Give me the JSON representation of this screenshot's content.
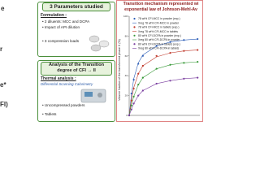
{
  "left_fragments": [
    "e",
    "r",
    "e*",
    "FI)"
  ],
  "parameters": {
    "title": "3 Parameters studied",
    "formulation_label": "Formulation :",
    "items": [
      "2 diluents: MCC and DCPA",
      "Impact of API dilution",
      "3 compression loads"
    ]
  },
  "analysis": {
    "title": "Analysis of the Transition degree of CFI → II",
    "thermal_label": "Thermal analysis :",
    "method": "Differential Scanning Calorimetry",
    "items": [
      "Uncompressed powders",
      "Tablets"
    ]
  },
  "chart_data": {
    "type": "scatter",
    "title": "Transition mechanism represented wi",
    "subtitle": "exponential law of Johnson-Mehl-Av",
    "y_label": "Volume fraction of the transformed phase X (%)",
    "x": [
      0,
      2,
      4,
      8,
      12,
      24,
      36,
      48,
      60
    ],
    "xlim": [
      0,
      62
    ],
    "ylim": [
      0,
      100
    ],
    "yticks": [
      0,
      20,
      40,
      60,
      80,
      100
    ],
    "series": [
      {
        "name": "78 wt% CFI-MCC in powder (exp.)",
        "color": "#2e5fb8",
        "mode": "markers",
        "values": [
          0,
          22,
          36,
          52,
          60,
          70,
          74,
          76,
          77
        ]
      },
      {
        "name": "Xreg 78 wt% CFI-MCC in powder",
        "color": "#2e5fb8",
        "mode": "line",
        "values": [
          0,
          21,
          37,
          53,
          61,
          70,
          74,
          76,
          77
        ]
      },
      {
        "name": "78 wt% CFI-MCC in tablets (exp.)",
        "color": "#c0392b",
        "mode": "markers",
        "values": [
          0,
          15,
          27,
          42,
          50,
          60,
          63,
          65,
          66
        ]
      },
      {
        "name": "Xreg 78 wt% CFI-MCC in tablets",
        "color": "#c0392b",
        "mode": "line",
        "values": [
          0,
          16,
          28,
          42,
          50,
          59,
          63,
          65,
          66
        ]
      },
      {
        "name": "80 wt% CFI-DCPA in powder (exp.)",
        "color": "#3a9a3a",
        "mode": "markers",
        "values": [
          0,
          10,
          19,
          31,
          38,
          47,
          51,
          53,
          54
        ]
      },
      {
        "name": "Xreg 80 wt% CFI-DCPA in powder",
        "color": "#3a9a3a",
        "mode": "line",
        "values": [
          0,
          11,
          19,
          31,
          38,
          47,
          51,
          53,
          54
        ]
      },
      {
        "name": "80 wt% CFI-DCPA in tablets (exp.)",
        "color": "#7b3fa0",
        "mode": "markers",
        "values": [
          0,
          6,
          12,
          20,
          25,
          32,
          35,
          37,
          38
        ]
      },
      {
        "name": "Xreg 80 wt% CFI-DCPA in tablets",
        "color": "#7b3fa0",
        "mode": "line",
        "values": [
          0,
          6,
          12,
          20,
          25,
          32,
          35,
          37,
          38
        ]
      }
    ]
  }
}
